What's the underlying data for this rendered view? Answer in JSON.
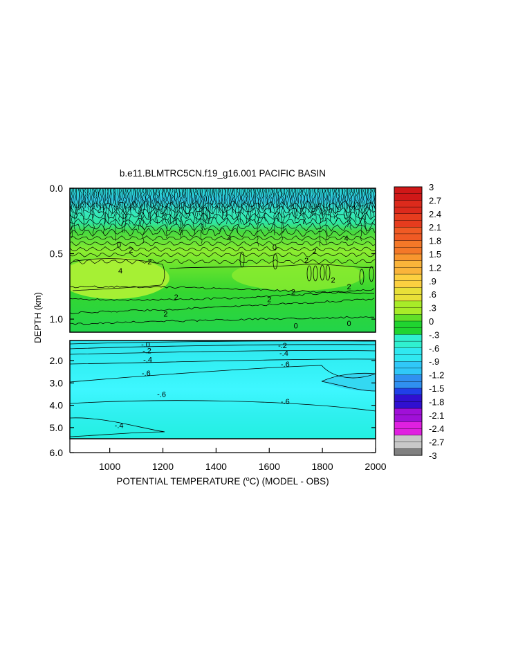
{
  "chart_data": {
    "type": "heatmap",
    "title": "b.e11.BLMTRC5CN.f19_g16.001 PACIFIC BASIN",
    "xlabel": "POTENTIAL TEMPERATURE (",
    "xlabel_unit_sup": "o",
    "xlabel_tail": "C) (MODEL - OBS)",
    "ylabel": "DEPTH (km)",
    "xlim": [
      850,
      2000
    ],
    "x_ticks": [
      {
        "value": 1000,
        "label": "1000"
      },
      {
        "value": 1200,
        "label": "1200"
      },
      {
        "value": 1400,
        "label": "1400"
      },
      {
        "value": 1600,
        "label": "1600"
      },
      {
        "value": 1800,
        "label": "1800"
      },
      {
        "value": 2000,
        "label": "2000"
      }
    ],
    "upper_panel": {
      "ylim": [
        0.0,
        1.1
      ],
      "y_ticks": [
        {
          "value": 0.0,
          "label": "0.0"
        },
        {
          "value": 0.5,
          "label": "0.5"
        },
        {
          "value": 1.0,
          "label": "1.0"
        }
      ],
      "contour_labels": [
        {
          "x": 1035,
          "y": 0.43,
          "text": "0"
        },
        {
          "x": 1080,
          "y": 0.47,
          "text": "2"
        },
        {
          "x": 1150,
          "y": 0.56,
          "text": "2"
        },
        {
          "x": 1450,
          "y": 0.38,
          "text": "4"
        },
        {
          "x": 1620,
          "y": 0.45,
          "text": "0"
        },
        {
          "x": 1770,
          "y": 0.48,
          "text": "2"
        },
        {
          "x": 1890,
          "y": 0.38,
          "text": "4"
        },
        {
          "x": 1040,
          "y": 0.63,
          "text": "4"
        },
        {
          "x": 1740,
          "y": 0.55,
          "text": "2"
        },
        {
          "x": 1840,
          "y": 0.7,
          "text": "2"
        },
        {
          "x": 1210,
          "y": 0.96,
          "text": "2"
        },
        {
          "x": 1250,
          "y": 0.83,
          "text": "2"
        },
        {
          "x": 1600,
          "y": 0.85,
          "text": "2"
        },
        {
          "x": 1690,
          "y": 0.79,
          "text": "2"
        },
        {
          "x": 1900,
          "y": 0.75,
          "text": "2"
        },
        {
          "x": 1700,
          "y": 1.05,
          "text": "0"
        },
        {
          "x": 1900,
          "y": 1.03,
          "text": "0"
        }
      ]
    },
    "lower_panel": {
      "ylim": [
        1.1,
        6.0
      ],
      "y_ticks": [
        {
          "value": 2.0,
          "label": "2.0"
        },
        {
          "value": 3.0,
          "label": "3.0"
        },
        {
          "value": 4.0,
          "label": "4.0"
        },
        {
          "value": 5.0,
          "label": "5.0"
        },
        {
          "value": 6.0,
          "label": "6.0"
        }
      ],
      "contour_labels": [
        {
          "x": 1135,
          "y": 1.27,
          "text": "-.0"
        },
        {
          "x": 1140,
          "y": 1.55,
          "text": "-.2"
        },
        {
          "x": 1143,
          "y": 1.95,
          "text": "-.4"
        },
        {
          "x": 1137,
          "y": 2.55,
          "text": "-.6"
        },
        {
          "x": 1195,
          "y": 3.5,
          "text": "-.6"
        },
        {
          "x": 1035,
          "y": 4.9,
          "text": "-.4"
        },
        {
          "x": 1650,
          "y": 1.32,
          "text": "-.2"
        },
        {
          "x": 1655,
          "y": 1.65,
          "text": "-.4"
        },
        {
          "x": 1660,
          "y": 2.15,
          "text": "-.6"
        },
        {
          "x": 1660,
          "y": 3.82,
          "text": "-.6"
        }
      ]
    },
    "colorbar": {
      "levels": [
        "3",
        "2.7",
        "2.4",
        "2.1",
        "1.8",
        "1.5",
        "1.2",
        ".9",
        ".6",
        ".3",
        "0",
        "-.3",
        "-.6",
        "-.9",
        "-1.2",
        "-1.5",
        "-1.8",
        "-2.1",
        "-2.4",
        "-2.7",
        "-3"
      ],
      "colors_top_to_bottom": [
        "#d01818",
        "#dc2a1c",
        "#e63c1e",
        "#f05a24",
        "#f47828",
        "#f8962e",
        "#fab43a",
        "#fcd040",
        "#e8e038",
        "#a8ec28",
        "#60e028",
        "#20d430",
        "#30f0d0",
        "#30e8f0",
        "#30c8f8",
        "#3090f0",
        "#2040e8",
        "#3010d0",
        "#a010d8",
        "#e020e0",
        "#c8c8c8",
        "#808080"
      ]
    }
  }
}
